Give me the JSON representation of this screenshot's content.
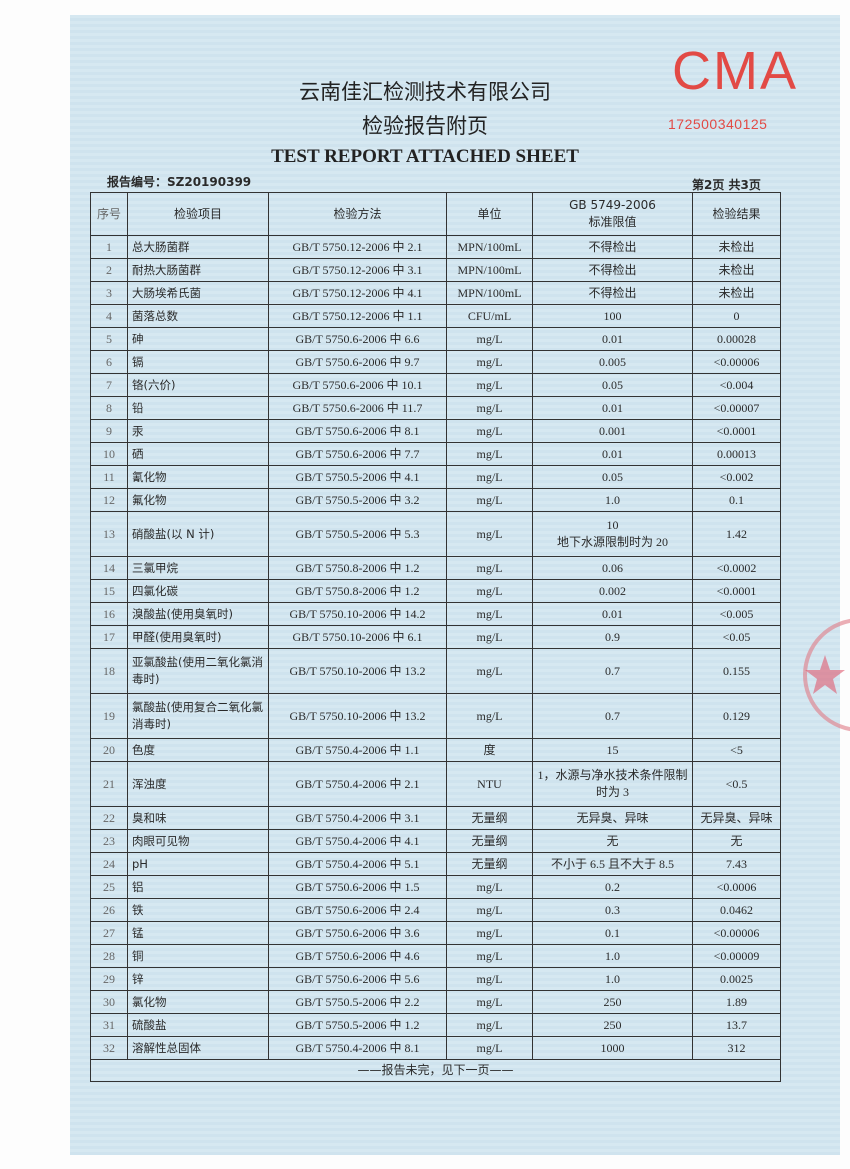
{
  "header": {
    "company": "云南佳汇检测技术有限公司",
    "subtitle": "检验报告附页",
    "title_en": "TEST REPORT ATTACHED SHEET",
    "cma_logo_text": "CMA",
    "cma_number": "172500340125",
    "report_no": "报告编号：SZ20190399",
    "page_info": "第2页 共3页"
  },
  "colors": {
    "paper": "#d3e6f0",
    "cma_red": "#e24a45"
  },
  "table": {
    "columns": [
      "序号",
      "检验项目",
      "检验方法",
      "单位",
      "GB 5749-2006\n标准限值",
      "检验结果"
    ],
    "rows": [
      [
        "1",
        "总大肠菌群",
        "GB/T 5750.12-2006 中 2.1",
        "MPN/100mL",
        "不得检出",
        "未检出"
      ],
      [
        "2",
        "耐热大肠菌群",
        "GB/T 5750.12-2006 中 3.1",
        "MPN/100mL",
        "不得检出",
        "未检出"
      ],
      [
        "3",
        "大肠埃希氏菌",
        "GB/T 5750.12-2006 中 4.1",
        "MPN/100mL",
        "不得检出",
        "未检出"
      ],
      [
        "4",
        "菌落总数",
        "GB/T 5750.12-2006 中 1.1",
        "CFU/mL",
        "100",
        "0"
      ],
      [
        "5",
        "砷",
        "GB/T 5750.6-2006 中 6.6",
        "mg/L",
        "0.01",
        "0.00028"
      ],
      [
        "6",
        "镉",
        "GB/T 5750.6-2006 中 9.7",
        "mg/L",
        "0.005",
        "<0.00006"
      ],
      [
        "7",
        "铬(六价)",
        "GB/T 5750.6-2006 中 10.1",
        "mg/L",
        "0.05",
        "<0.004"
      ],
      [
        "8",
        "铅",
        "GB/T 5750.6-2006 中 11.7",
        "mg/L",
        "0.01",
        "<0.00007"
      ],
      [
        "9",
        "汞",
        "GB/T 5750.6-2006 中 8.1",
        "mg/L",
        "0.001",
        "<0.0001"
      ],
      [
        "10",
        "硒",
        "GB/T 5750.6-2006 中 7.7",
        "mg/L",
        "0.01",
        "0.00013"
      ],
      [
        "11",
        "氰化物",
        "GB/T 5750.5-2006 中 4.1",
        "mg/L",
        "0.05",
        "<0.002"
      ],
      [
        "12",
        "氟化物",
        "GB/T 5750.5-2006 中 3.2",
        "mg/L",
        "1.0",
        "0.1"
      ],
      [
        "13",
        "硝酸盐(以 N 计)",
        "GB/T 5750.5-2006 中 5.3",
        "mg/L",
        "10\n地下水源限制时为 20",
        "1.42"
      ],
      [
        "14",
        "三氯甲烷",
        "GB/T 5750.8-2006 中 1.2",
        "mg/L",
        "0.06",
        "<0.0002"
      ],
      [
        "15",
        "四氯化碳",
        "GB/T 5750.8-2006 中 1.2",
        "mg/L",
        "0.002",
        "<0.0001"
      ],
      [
        "16",
        "溴酸盐(使用臭氧时)",
        "GB/T 5750.10-2006 中 14.2",
        "mg/L",
        "0.01",
        "<0.005"
      ],
      [
        "17",
        "甲醛(使用臭氧时)",
        "GB/T 5750.10-2006 中 6.1",
        "mg/L",
        "0.9",
        "<0.05"
      ],
      [
        "18",
        "亚氯酸盐(使用二氧化氯消毒时)",
        "GB/T 5750.10-2006 中 13.2",
        "mg/L",
        "0.7",
        "0.155"
      ],
      [
        "19",
        "氯酸盐(使用复合二氧化氯消毒时)",
        "GB/T 5750.10-2006 中 13.2",
        "mg/L",
        "0.7",
        "0.129"
      ],
      [
        "20",
        "色度",
        "GB/T 5750.4-2006 中 1.1",
        "度",
        "15",
        "<5"
      ],
      [
        "21",
        "浑浊度",
        "GB/T 5750.4-2006 中 2.1",
        "NTU",
        "1，水源与净水技术条件限制时为 3",
        "<0.5"
      ],
      [
        "22",
        "臭和味",
        "GB/T 5750.4-2006 中 3.1",
        "无量纲",
        "无异臭、异味",
        "无异臭、异味"
      ],
      [
        "23",
        "肉眼可见物",
        "GB/T 5750.4-2006 中 4.1",
        "无量纲",
        "无",
        "无"
      ],
      [
        "24",
        "pH",
        "GB/T 5750.4-2006 中 5.1",
        "无量纲",
        "不小于 6.5 且不大于 8.5",
        "7.43"
      ],
      [
        "25",
        "铝",
        "GB/T 5750.6-2006 中 1.5",
        "mg/L",
        "0.2",
        "<0.0006"
      ],
      [
        "26",
        "铁",
        "GB/T 5750.6-2006 中 2.4",
        "mg/L",
        "0.3",
        "0.0462"
      ],
      [
        "27",
        "锰",
        "GB/T 5750.6-2006 中 3.6",
        "mg/L",
        "0.1",
        "<0.00006"
      ],
      [
        "28",
        "铜",
        "GB/T 5750.6-2006 中 4.6",
        "mg/L",
        "1.0",
        "<0.00009"
      ],
      [
        "29",
        "锌",
        "GB/T 5750.6-2006 中 5.6",
        "mg/L",
        "1.0",
        "0.0025"
      ],
      [
        "30",
        "氯化物",
        "GB/T 5750.5-2006 中 2.2",
        "mg/L",
        "250",
        "1.89"
      ],
      [
        "31",
        "硫酸盐",
        "GB/T 5750.5-2006 中 1.2",
        "mg/L",
        "250",
        "13.7"
      ],
      [
        "32",
        "溶解性总固体",
        "GB/T 5750.4-2006 中 8.1",
        "mg/L",
        "1000",
        "312"
      ]
    ],
    "footer": "——报告未完，见下一页——"
  }
}
